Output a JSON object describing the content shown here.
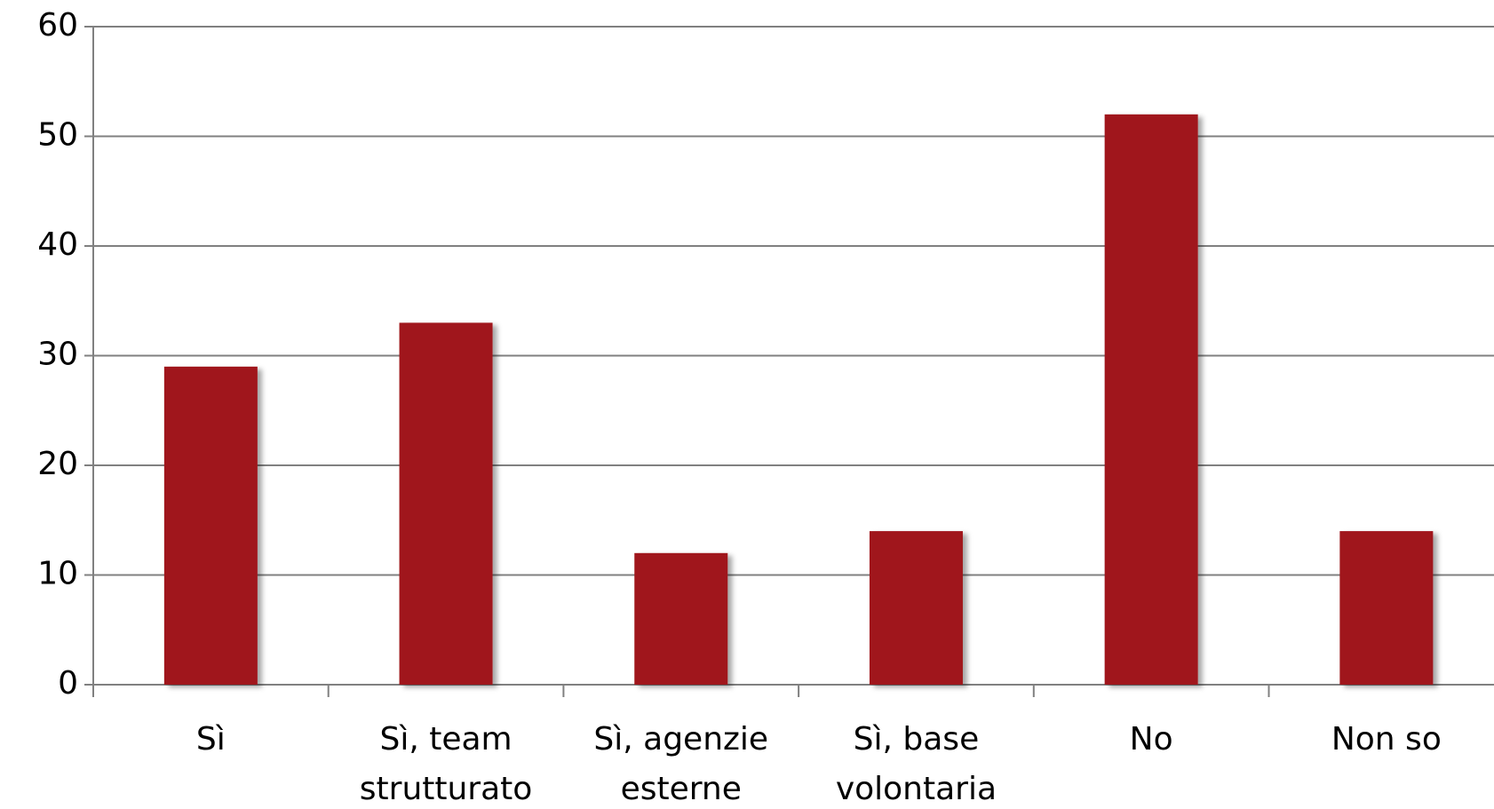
{
  "chart_data": {
    "type": "bar",
    "categories": [
      [
        "Sì"
      ],
      [
        "Sì, team",
        "strutturato"
      ],
      [
        "Sì, agenzie",
        "esterne"
      ],
      [
        "Sì, base",
        "volontaria"
      ],
      [
        "No"
      ],
      [
        "Non so"
      ]
    ],
    "values": [
      29,
      33,
      12,
      14,
      52,
      14
    ],
    "color": "#a0141a",
    "ylim": [
      0,
      60
    ],
    "yticks": [
      0,
      10,
      20,
      30,
      40,
      50,
      60
    ],
    "grid": true
  }
}
